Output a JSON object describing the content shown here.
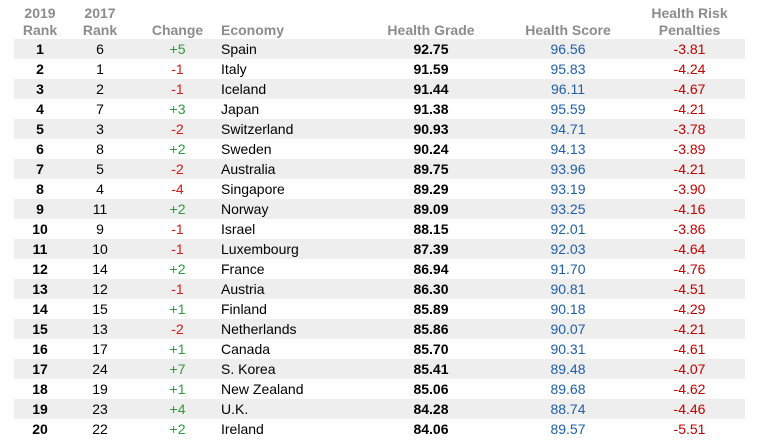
{
  "headers": {
    "rank2019_line1": "2019",
    "rank2019_line2": "Rank",
    "rank2017_line1": "2017",
    "rank2017_line2": "Rank",
    "change": "Change",
    "economy": "Economy",
    "health_grade": "Health Grade",
    "health_score": "Health Score",
    "penalties_line1": "Health Risk",
    "penalties_line2": "Penalties"
  },
  "colors": {
    "positive_change": "#2e9a3a",
    "negative_change": "#d21b1b",
    "health_score": "#1f5fa8",
    "penalties": "#c00000",
    "header_text": "#8c8c8c",
    "stripe": "#eeeeee"
  },
  "rows": [
    {
      "rank2019": "1",
      "rank2017": "6",
      "change": "+5",
      "economy": "Spain",
      "grade": "92.75",
      "score": "96.56",
      "penalty": "-3.81"
    },
    {
      "rank2019": "2",
      "rank2017": "1",
      "change": "-1",
      "economy": "Italy",
      "grade": "91.59",
      "score": "95.83",
      "penalty": "-4.24"
    },
    {
      "rank2019": "3",
      "rank2017": "2",
      "change": "-1",
      "economy": "Iceland",
      "grade": "91.44",
      "score": "96.11",
      "penalty": "-4.67"
    },
    {
      "rank2019": "4",
      "rank2017": "7",
      "change": "+3",
      "economy": "Japan",
      "grade": "91.38",
      "score": "95.59",
      "penalty": "-4.21"
    },
    {
      "rank2019": "5",
      "rank2017": "3",
      "change": "-2",
      "economy": "Switzerland",
      "grade": "90.93",
      "score": "94.71",
      "penalty": "-3.78"
    },
    {
      "rank2019": "6",
      "rank2017": "8",
      "change": "+2",
      "economy": "Sweden",
      "grade": "90.24",
      "score": "94.13",
      "penalty": "-3.89"
    },
    {
      "rank2019": "7",
      "rank2017": "5",
      "change": "-2",
      "economy": "Australia",
      "grade": "89.75",
      "score": "93.96",
      "penalty": "-4.21"
    },
    {
      "rank2019": "8",
      "rank2017": "4",
      "change": "-4",
      "economy": "Singapore",
      "grade": "89.29",
      "score": "93.19",
      "penalty": "-3.90"
    },
    {
      "rank2019": "9",
      "rank2017": "11",
      "change": "+2",
      "economy": "Norway",
      "grade": "89.09",
      "score": "93.25",
      "penalty": "-4.16"
    },
    {
      "rank2019": "10",
      "rank2017": "9",
      "change": "-1",
      "economy": "Israel",
      "grade": "88.15",
      "score": "92.01",
      "penalty": "-3.86"
    },
    {
      "rank2019": "11",
      "rank2017": "10",
      "change": "-1",
      "economy": "Luxembourg",
      "grade": "87.39",
      "score": "92.03",
      "penalty": "-4.64"
    },
    {
      "rank2019": "12",
      "rank2017": "14",
      "change": "+2",
      "economy": "France",
      "grade": "86.94",
      "score": "91.70",
      "penalty": "-4.76"
    },
    {
      "rank2019": "13",
      "rank2017": "12",
      "change": "-1",
      "economy": "Austria",
      "grade": "86.30",
      "score": "90.81",
      "penalty": "-4.51"
    },
    {
      "rank2019": "14",
      "rank2017": "15",
      "change": "+1",
      "economy": "Finland",
      "grade": "85.89",
      "score": "90.18",
      "penalty": "-4.29"
    },
    {
      "rank2019": "15",
      "rank2017": "13",
      "change": "-2",
      "economy": "Netherlands",
      "grade": "85.86",
      "score": "90.07",
      "penalty": "-4.21"
    },
    {
      "rank2019": "16",
      "rank2017": "17",
      "change": "+1",
      "economy": "Canada",
      "grade": "85.70",
      "score": "90.31",
      "penalty": "-4.61"
    },
    {
      "rank2019": "17",
      "rank2017": "24",
      "change": "+7",
      "economy": "S. Korea",
      "grade": "85.41",
      "score": "89.48",
      "penalty": "-4.07"
    },
    {
      "rank2019": "18",
      "rank2017": "19",
      "change": "+1",
      "economy": "New Zealand",
      "grade": "85.06",
      "score": "89.68",
      "penalty": "-4.62"
    },
    {
      "rank2019": "19",
      "rank2017": "23",
      "change": "+4",
      "economy": "U.K.",
      "grade": "84.28",
      "score": "88.74",
      "penalty": "-4.46"
    },
    {
      "rank2019": "20",
      "rank2017": "22",
      "change": "+2",
      "economy": "Ireland",
      "grade": "84.06",
      "score": "89.57",
      "penalty": "-5.51"
    }
  ]
}
